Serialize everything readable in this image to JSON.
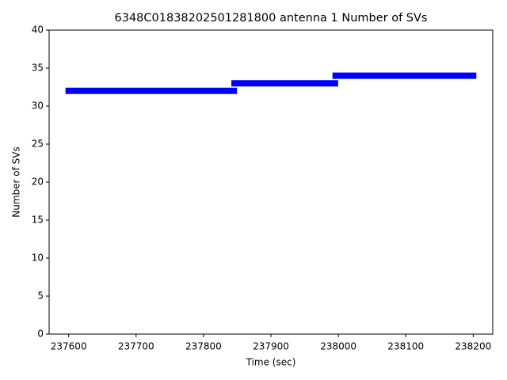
{
  "chart_data": {
    "type": "line",
    "title": "6348C01838202501281800 antenna 1 Number of SVs",
    "x_label": "Time (sec)",
    "y_label": "Number of SVs",
    "x": [
      237600,
      237845,
      237845.5,
      237846,
      237995,
      237995.5,
      237996,
      238200
    ],
    "series": [
      {
        "name": "Number of SVs",
        "color": "#0000ff",
        "values": [
          32,
          32,
          null,
          33,
          33,
          null,
          34,
          34
        ]
      }
    ],
    "xlim": [
      237571,
      238229
    ],
    "xticks": [
      237600,
      237700,
      237800,
      237900,
      238000,
      238100,
      238200
    ],
    "ylim": [
      0,
      40
    ],
    "yticks": [
      0,
      5,
      10,
      15,
      20,
      25,
      30,
      35,
      40
    ]
  }
}
